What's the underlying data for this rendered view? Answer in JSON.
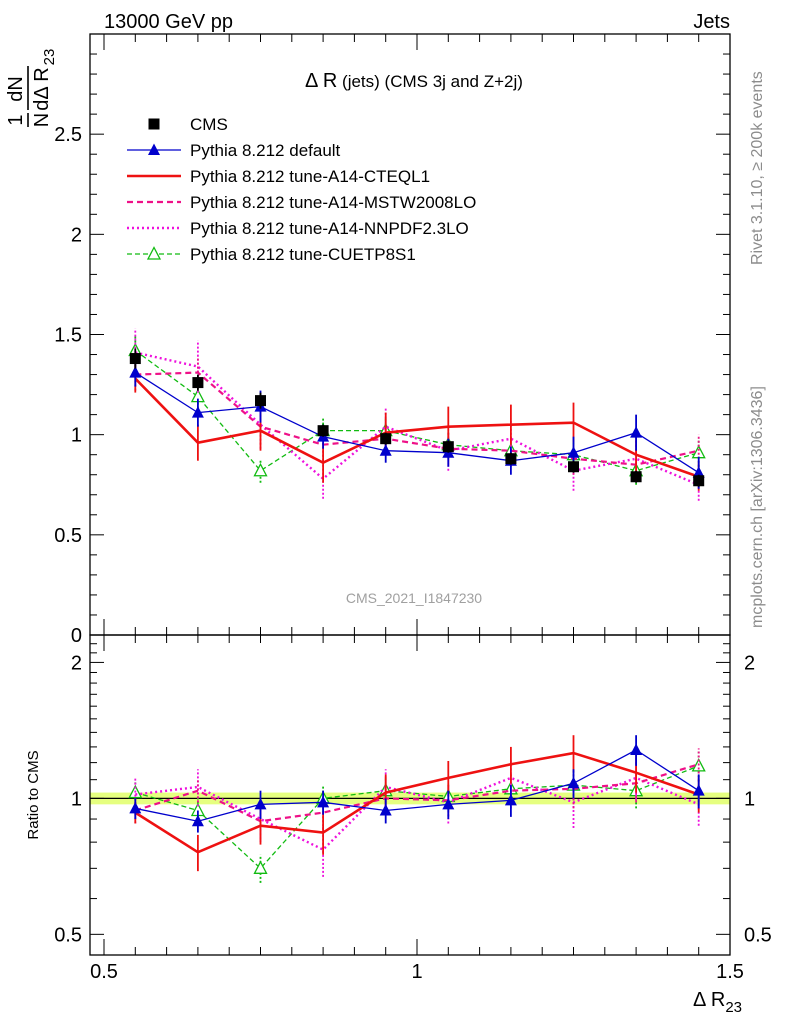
{
  "header": {
    "left": "13000 GeV pp",
    "right": "Jets"
  },
  "side_text": {
    "top": "Rivet 3.1.10, ≥ 200k events",
    "bottom": "mcplots.cern.ch [arXiv:1306.3436]"
  },
  "watermark": "CMS_2021_I1847230",
  "colors": {
    "cms": "#000000",
    "default": "#0000cc",
    "cteql1": "#ee1111",
    "mstw": "#ee1188",
    "nnpdf": "#ee11dd",
    "cuetp": "#11bb11",
    "band": "#e6ff80"
  },
  "chart_data": [
    {
      "type": "line",
      "panel": "main",
      "title_main": "Δ R",
      "title_sub": " (jets) (CMS 3j and Z+2j)",
      "ylabel": {
        "frac_num": "1",
        "frac_den": "N",
        "d_num": "dN",
        "d_den": "dΔ R",
        "sub": "23"
      },
      "ylim": [
        0,
        3.0
      ],
      "yticks": [
        {
          "v": 0.5,
          "label": "0.5"
        },
        {
          "v": 1.0,
          "label": "1"
        },
        {
          "v": 1.5,
          "label": "1.5"
        },
        {
          "v": 2.0,
          "label": "2"
        },
        {
          "v": 2.5,
          "label": "2.5"
        },
        {
          "v": 0.0,
          "label": "0"
        }
      ],
      "x": [
        0.55,
        0.65,
        0.75,
        0.85,
        0.95,
        1.05,
        1.15,
        1.25,
        1.35,
        1.45
      ],
      "series": [
        {
          "name": "CMS",
          "key": "cms",
          "values": [
            1.38,
            1.26,
            1.17,
            1.02,
            0.98,
            0.94,
            0.88,
            0.84,
            0.79,
            0.77
          ],
          "errors": [
            0.05,
            0.04,
            0.04,
            0.03,
            0.03,
            0.03,
            0.03,
            0.03,
            0.03,
            0.03
          ]
        },
        {
          "name": "Pythia 8.212 default",
          "key": "default",
          "values": [
            1.31,
            1.11,
            1.14,
            0.99,
            0.92,
            0.91,
            0.87,
            0.91,
            1.01,
            0.81
          ],
          "errors": [
            0.07,
            0.07,
            0.08,
            0.06,
            0.06,
            0.07,
            0.07,
            0.08,
            0.09,
            0.08
          ]
        },
        {
          "name": "Pythia 8.212 tune-A14-CTEQL1",
          "key": "cteql1",
          "values": [
            1.28,
            0.96,
            1.02,
            0.86,
            1.01,
            1.04,
            1.05,
            1.06,
            0.9,
            0.79
          ],
          "errors": [
            0.07,
            0.09,
            0.1,
            0.1,
            0.1,
            0.1,
            0.1,
            0.1,
            0.09,
            0.07
          ]
        },
        {
          "name": "Pythia 8.212 tune-A14-MSTW2008LO",
          "key": "mstw",
          "values": [
            1.3,
            1.31,
            1.04,
            0.95,
            0.98,
            0.93,
            0.92,
            0.88,
            0.85,
            0.92
          ],
          "errors": [
            0.08,
            0.08,
            0.09,
            0.08,
            0.08,
            0.08,
            0.08,
            0.08,
            0.08,
            0.08
          ]
        },
        {
          "name": "Pythia 8.212 tune-A14-NNPDF2.3LO",
          "key": "nnpdf",
          "values": [
            1.41,
            1.34,
            1.05,
            0.78,
            1.04,
            0.92,
            0.98,
            0.82,
            0.88,
            0.75
          ],
          "errors": [
            0.12,
            0.13,
            0.12,
            0.1,
            0.1,
            0.1,
            0.1,
            0.1,
            0.1,
            0.08
          ]
        },
        {
          "name": "Pythia 8.212 tune-CUETP8S1",
          "key": "cuetp",
          "values": [
            1.42,
            1.19,
            0.82,
            1.02,
            1.02,
            0.95,
            0.92,
            0.9,
            0.82,
            0.91
          ],
          "errors": [
            0.08,
            0.08,
            0.06,
            0.07,
            0.07,
            0.07,
            0.07,
            0.07,
            0.07,
            0.07
          ]
        }
      ]
    },
    {
      "type": "line",
      "panel": "ratio",
      "ylabel": "Ratio to CMS",
      "xlabel_main": "Δ R",
      "xlabel_sub": "23",
      "xlim": [
        0.5,
        1.5
      ],
      "ylim": [
        0.45,
        2.3
      ],
      "xticks": [
        {
          "v": 0.5,
          "label": "0.5"
        },
        {
          "v": 1.0,
          "label": "1"
        },
        {
          "v": 1.5,
          "label": "1.5"
        }
      ],
      "yticks": [
        {
          "v": 0.5,
          "label": "0.5"
        },
        {
          "v": 1.0,
          "label": "1"
        },
        {
          "v": 2.0,
          "label": "2"
        }
      ],
      "band": [
        0.97,
        1.03
      ],
      "x": [
        0.55,
        0.65,
        0.75,
        0.85,
        0.95,
        1.05,
        1.15,
        1.25,
        1.35,
        1.45
      ],
      "series": [
        {
          "name": "Pythia 8.212 default",
          "key": "default",
          "values": [
            0.95,
            0.89,
            0.97,
            0.98,
            0.94,
            0.97,
            0.99,
            1.08,
            1.28,
            1.04
          ],
          "errors": [
            0.05,
            0.05,
            0.07,
            0.06,
            0.06,
            0.07,
            0.08,
            0.08,
            0.1,
            0.09
          ]
        },
        {
          "name": "Pythia 8.212 tune-A14-CTEQL1",
          "key": "cteql1",
          "values": [
            0.93,
            0.76,
            0.87,
            0.84,
            1.03,
            1.11,
            1.19,
            1.26,
            1.14,
            1.02
          ],
          "errors": [
            0.05,
            0.07,
            0.08,
            0.09,
            0.1,
            0.1,
            0.11,
            0.12,
            0.11,
            0.09
          ]
        },
        {
          "name": "Pythia 8.212 tune-A14-MSTW2008LO",
          "key": "mstw",
          "values": [
            0.94,
            1.04,
            0.89,
            0.93,
            1.0,
            0.99,
            1.04,
            1.05,
            1.08,
            1.19
          ],
          "errors": [
            0.06,
            0.06,
            0.08,
            0.08,
            0.08,
            0.08,
            0.09,
            0.1,
            0.1,
            0.1
          ]
        },
        {
          "name": "Pythia 8.212 tune-A14-NNPDF2.3LO",
          "key": "nnpdf",
          "values": [
            1.02,
            1.06,
            0.9,
            0.77,
            1.06,
            0.98,
            1.11,
            0.98,
            1.11,
            0.97
          ],
          "errors": [
            0.09,
            0.1,
            0.1,
            0.1,
            0.1,
            0.1,
            0.11,
            0.12,
            0.12,
            0.1
          ]
        },
        {
          "name": "Pythia 8.212 tune-CUETP8S1",
          "key": "cuetp",
          "values": [
            1.03,
            0.94,
            0.7,
            1.0,
            1.04,
            1.01,
            1.05,
            1.07,
            1.04,
            1.18
          ],
          "errors": [
            0.06,
            0.06,
            0.05,
            0.07,
            0.07,
            0.07,
            0.08,
            0.08,
            0.09,
            0.09
          ]
        }
      ]
    }
  ]
}
